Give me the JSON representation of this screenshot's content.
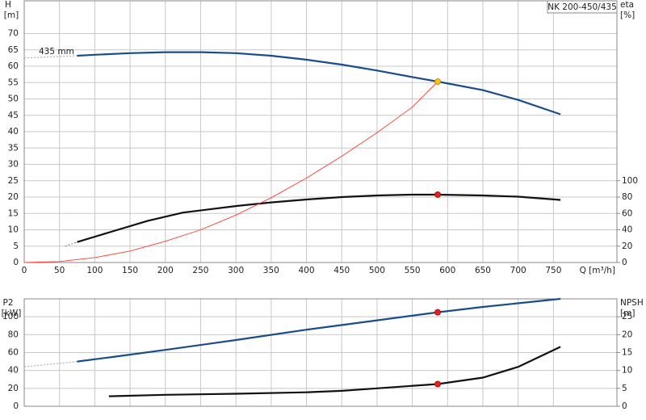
{
  "chart_data": [
    {
      "type": "line",
      "title": "NK 200-450/435",
      "ylabel": "H",
      "yunit": "[m]",
      "y2label": "eta",
      "y2unit": "[%]",
      "xlabel": "Q [m³/h]",
      "xlim": [
        0,
        840
      ],
      "xticks": [
        0,
        50,
        100,
        150,
        200,
        250,
        300,
        350,
        400,
        450,
        500,
        550,
        600,
        650,
        700,
        750
      ],
      "ylim": [
        0,
        80
      ],
      "yticks": [
        0,
        5,
        10,
        15,
        20,
        25,
        30,
        35,
        40,
        45,
        50,
        55,
        60,
        65,
        70
      ],
      "y2lim": [
        0,
        320
      ],
      "y2ticks": [
        0,
        20,
        40,
        60,
        80,
        100
      ],
      "grid": true,
      "annotation": "435 mm",
      "series": [
        {
          "color": "#9aa6b8",
          "dash": true,
          "axis": "y",
          "x": [
            0,
            75
          ],
          "values": [
            62.5,
            63.2
          ]
        },
        {
          "color": "#1a4c8c",
          "axis": "y",
          "x": [
            75,
            100,
            150,
            200,
            250,
            300,
            350,
            400,
            450,
            500,
            550,
            586,
            650,
            700,
            760
          ],
          "values": [
            63.2,
            63.5,
            64,
            64.3,
            64.3,
            64,
            63.2,
            62,
            60.5,
            58.7,
            56.7,
            55.3,
            52.7,
            49.7,
            45.3
          ]
        },
        {
          "color": "#777777",
          "dash": true,
          "axis": "y2",
          "x": [
            58,
            75
          ],
          "values": [
            20,
            25
          ]
        },
        {
          "color": "#111111",
          "axis": "y2",
          "x": [
            75,
            125,
            175,
            225,
            300,
            350,
            400,
            450,
            500,
            550,
            586,
            650,
            700,
            760
          ],
          "values": [
            25,
            38,
            51,
            61,
            69,
            73.5,
            77,
            80,
            82,
            83,
            83,
            82,
            80.5,
            76.5
          ]
        },
        {
          "color": "#ff3b30",
          "thin": true,
          "axis": "y",
          "x": [
            0,
            50,
            100,
            150,
            200,
            250,
            300,
            350,
            400,
            450,
            500,
            550,
            586
          ],
          "values": [
            0,
            0.3,
            1.5,
            3.5,
            6.5,
            10,
            14.5,
            19.8,
            25.8,
            32.5,
            39.7,
            47.5,
            55.3
          ]
        },
        {
          "color": "#f5c518",
          "marker": true,
          "axis": "y",
          "x": [
            586
          ],
          "values": [
            55.3
          ]
        },
        {
          "color": "#e8201a",
          "marker": true,
          "axis": "y2",
          "x": [
            586
          ],
          "values": [
            83
          ]
        }
      ]
    },
    {
      "type": "line",
      "ylabel": "P2",
      "yunit": "[kW]",
      "y2label": "NPSH",
      "y2unit": "[m]",
      "xlim": [
        0,
        840
      ],
      "xticks": [
        0,
        50,
        100,
        150,
        200,
        250,
        300,
        350,
        400,
        450,
        500,
        550,
        600,
        650,
        700,
        750
      ],
      "ylim": [
        0,
        120
      ],
      "yticks": [
        0,
        20,
        40,
        60,
        80,
        100
      ],
      "y2lim": [
        0,
        30
      ],
      "y2ticks": [
        0,
        5,
        10,
        15,
        20,
        25
      ],
      "grid": true,
      "series": [
        {
          "color": "#9aa6b8",
          "dash": true,
          "axis": "y",
          "x": [
            0,
            75
          ],
          "values": [
            44,
            50
          ]
        },
        {
          "color": "#1a4c8c",
          "axis": "y",
          "x": [
            75,
            125,
            200,
            300,
            400,
            500,
            586,
            650,
            760
          ],
          "values": [
            50,
            55,
            63,
            74,
            85.5,
            96,
            105,
            111,
            120
          ]
        },
        {
          "color": "#111111",
          "axis": "y2",
          "x": [
            120,
            200,
            300,
            400,
            450,
            500,
            586,
            650,
            700,
            760
          ],
          "values": [
            2.8,
            3.2,
            3.5,
            3.9,
            4.3,
            5,
            6.2,
            8,
            11,
            16.6
          ]
        },
        {
          "color": "#e8201a",
          "marker": true,
          "axis": "y",
          "x": [
            586
          ],
          "values": [
            105
          ]
        },
        {
          "color": "#e8201a",
          "marker": true,
          "axis": "y2",
          "x": [
            586
          ],
          "values": [
            6.2
          ]
        }
      ]
    }
  ]
}
